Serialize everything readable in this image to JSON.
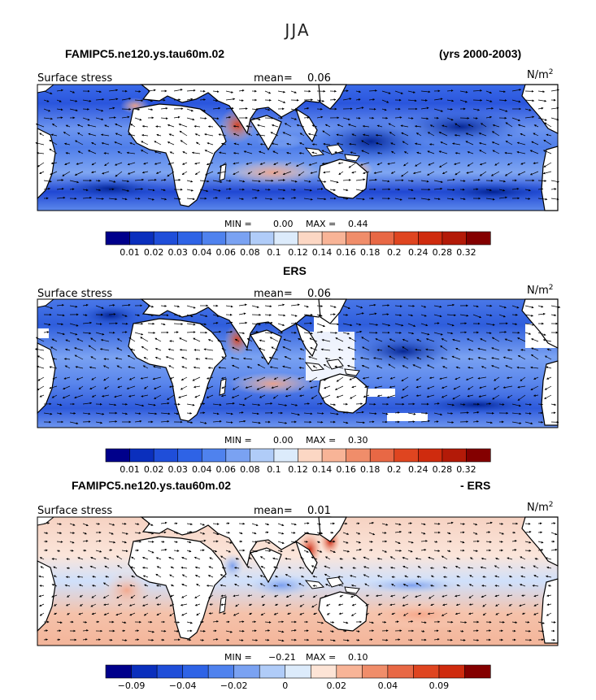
{
  "figure": {
    "season_title": "JJA",
    "header_left": "FAMIPC5.ne120.ys.tau60m.02",
    "header_right": "(yrs 2000-2003)"
  },
  "chart_data": [
    {
      "type": "heatmap",
      "title": "FAMIPC5.ne120.ys.tau60m.02",
      "left_label": "Surface stress",
      "mean_label": "mean=",
      "mean_value": "0.06",
      "units": "N/m",
      "units_sup": "2",
      "min_label": "MIN =",
      "min_value": "0.00",
      "max_label": "MAX =",
      "max_value": "0.44",
      "legend_levels": [
        "0.01",
        "0.02",
        "0.03",
        "0.04",
        "0.06",
        "0.08",
        "0.1",
        "0.12",
        "0.14",
        "0.16",
        "0.18",
        "0.2",
        "0.24",
        "0.28",
        "0.32"
      ],
      "legend_colors": [
        "#00008b",
        "#0a2fbd",
        "#1f4ed9",
        "#2e63e6",
        "#4f82ee",
        "#7aa2f2",
        "#b0ccf8",
        "#dcebfb",
        "#fcd7c4",
        "#f8b497",
        "#f08d6a",
        "#e86845",
        "#df4520",
        "#cf2b0e",
        "#b31a08",
        "#840000"
      ]
    },
    {
      "type": "heatmap",
      "title": "ERS",
      "left_label": "Surface stress",
      "mean_label": "mean=",
      "mean_value": "0.06",
      "units": "N/m",
      "units_sup": "2",
      "min_label": "MIN =",
      "min_value": "0.00",
      "max_label": "MAX =",
      "max_value": "0.30",
      "legend_levels": [
        "0.01",
        "0.02",
        "0.03",
        "0.04",
        "0.06",
        "0.08",
        "0.1",
        "0.12",
        "0.14",
        "0.16",
        "0.18",
        "0.2",
        "0.24",
        "0.28",
        "0.32"
      ],
      "legend_colors": [
        "#00008b",
        "#0a2fbd",
        "#1f4ed9",
        "#2e63e6",
        "#4f82ee",
        "#7aa2f2",
        "#b0ccf8",
        "#dcebfb",
        "#fcd7c4",
        "#f8b497",
        "#f08d6a",
        "#e86845",
        "#df4520",
        "#cf2b0e",
        "#b31a08",
        "#840000"
      ]
    },
    {
      "type": "heatmap",
      "title_left": "FAMIPC5.ne120.ys.tau60m.02",
      "title_right": "- ERS",
      "left_label": "Surface stress",
      "mean_label": "mean=",
      "mean_value": "0.01",
      "units": "N/m",
      "units_sup": "2",
      "min_label": "MIN =",
      "min_value": "−0.21",
      "max_label": "MAX =",
      "max_value": "0.10",
      "legend_levels": [
        "−0.09",
        "",
        "−0.04",
        "",
        "−0.02",
        "",
        "0",
        "",
        "0.02",
        "",
        "0.04",
        "",
        "0.09",
        ""
      ],
      "legend_colors": [
        "#00008b",
        "#0a2fbd",
        "#1f4ed9",
        "#2e63e6",
        "#4f82ee",
        "#7aa2f2",
        "#b0ccf8",
        "#dcebfb",
        "#fde4d6",
        "#f8b497",
        "#f08d6a",
        "#e86845",
        "#df4520",
        "#cf2b0e",
        "#840000"
      ]
    }
  ]
}
